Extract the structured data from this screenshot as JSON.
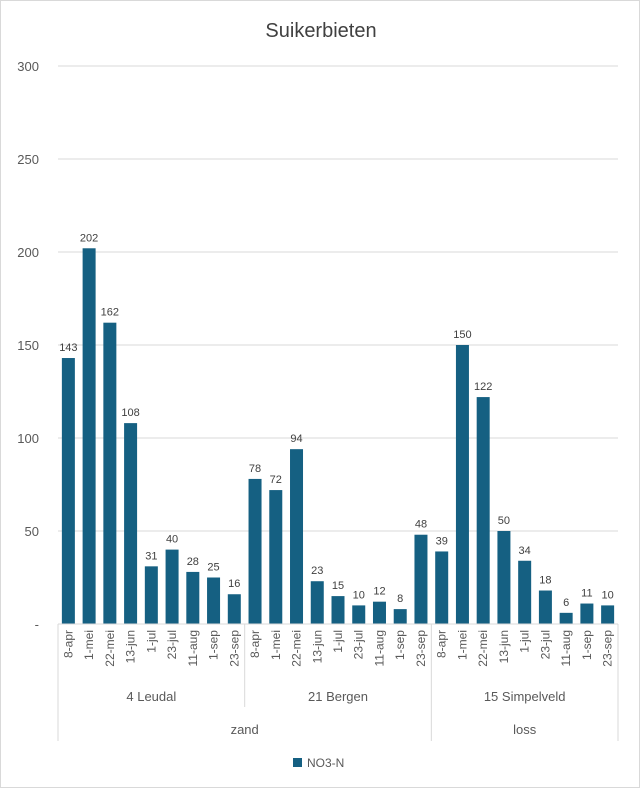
{
  "chart_data": {
    "type": "bar",
    "title": "Suikerbieten",
    "ylim": [
      0,
      300
    ],
    "yticks": [
      0,
      50,
      100,
      150,
      200,
      250,
      300
    ],
    "ytick_labels": [
      "-",
      "50",
      "100",
      "150",
      "200",
      "250",
      "300"
    ],
    "grid": true,
    "legend_position": "bottom",
    "series": [
      {
        "name": "NO3-N",
        "color": "#156082"
      }
    ],
    "soil_groups": [
      {
        "name": "zand",
        "locations": [
          {
            "name": "4 Leudal",
            "categories": [
              "8-apr",
              "1-mei",
              "22-mei",
              "13-jun",
              "1-jul",
              "23-jul",
              "11-aug",
              "1-sep",
              "23-sep"
            ],
            "values": [
              143,
              202,
              162,
              108,
              31,
              40,
              28,
              25,
              16
            ]
          },
          {
            "name": "21 Bergen",
            "categories": [
              "8-apr",
              "1-mei",
              "22-mei",
              "13-jun",
              "1-jul",
              "23-jul",
              "11-aug",
              "1-sep",
              "23-sep"
            ],
            "values": [
              78,
              72,
              94,
              23,
              15,
              10,
              12,
              8,
              48
            ]
          }
        ]
      },
      {
        "name": "loss",
        "locations": [
          {
            "name": "15 Simpelveld",
            "categories": [
              "8-apr",
              "1-mei",
              "22-mei",
              "13-jun",
              "1-jul",
              "23-jul",
              "11-aug",
              "1-sep",
              "23-sep"
            ],
            "values": [
              39,
              150,
              122,
              50,
              34,
              18,
              6,
              11,
              10
            ]
          }
        ]
      }
    ]
  }
}
